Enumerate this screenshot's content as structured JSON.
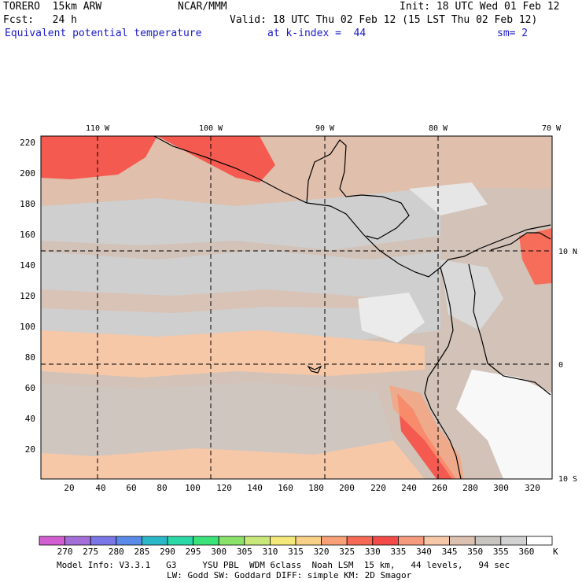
{
  "header": {
    "model": "TORERO  15km ARW",
    "org": "NCAR/MMM",
    "init": "Init: 18 UTC Wed 01 Feb 12",
    "forecast": "Fcst:   24 h",
    "valid": "Valid: 18 UTC Thu 02 Feb 12 (15 LST Thu 02 Feb 12)",
    "field": "Equivalent potential temperature",
    "level": "at k-index =  44",
    "smoothing": "sm= 2"
  },
  "map": {
    "lon_labels": [
      "110 W",
      "100 W",
      "90 W",
      "80 W",
      "70 W"
    ],
    "lat_labels": [
      "10 N",
      "0",
      "10 S"
    ],
    "y_ticks": [
      "220",
      "200",
      "180",
      "160",
      "140",
      "120",
      "100",
      "80",
      "60",
      "40",
      "20"
    ],
    "x_ticks": [
      "20",
      "40",
      "60",
      "80",
      "100",
      "120",
      "140",
      "160",
      "180",
      "200",
      "220",
      "240",
      "260",
      "280",
      "300",
      "320"
    ],
    "colors": {
      "c320": "#f9c89e",
      "c325": "#f9a078",
      "c330": "#f45a50",
      "c335": "#f66e5a",
      "c340": "#f6c8a8",
      "c345": "#e0bfac",
      "c350": "#d2c2b8",
      "c355": "#cfcfcf",
      "c360": "#ebebeb",
      "c365": "#f8f8f8"
    }
  },
  "colorbar": {
    "labels": [
      "270",
      "275",
      "280",
      "285",
      "290",
      "295",
      "300",
      "305",
      "310",
      "315",
      "320",
      "325",
      "330",
      "335",
      "340",
      "345",
      "350",
      "355",
      "360"
    ],
    "unit": "K",
    "colors": [
      "#d25ed2",
      "#a46ed8",
      "#7a76e8",
      "#5a8ae8",
      "#2ab8c8",
      "#2ad8a8",
      "#3ae27a",
      "#8ae26a",
      "#c8e87a",
      "#f4e87a",
      "#f8d088",
      "#f9a078",
      "#f66a55",
      "#f44a48",
      "#f69a7e",
      "#f6c8a8",
      "#dcc0b0",
      "#c8c4c0",
      "#d2d2d2",
      "#ffffff"
    ]
  },
  "footer": {
    "line1": "Model Info: V3.3.1   G3     YSU PBL  WDM 6class  Noah LSM  15 km,   44 levels,   94 sec",
    "line2": "LW: Godd SW: Goddard DIFF: simple KM: 2D Smagor"
  }
}
